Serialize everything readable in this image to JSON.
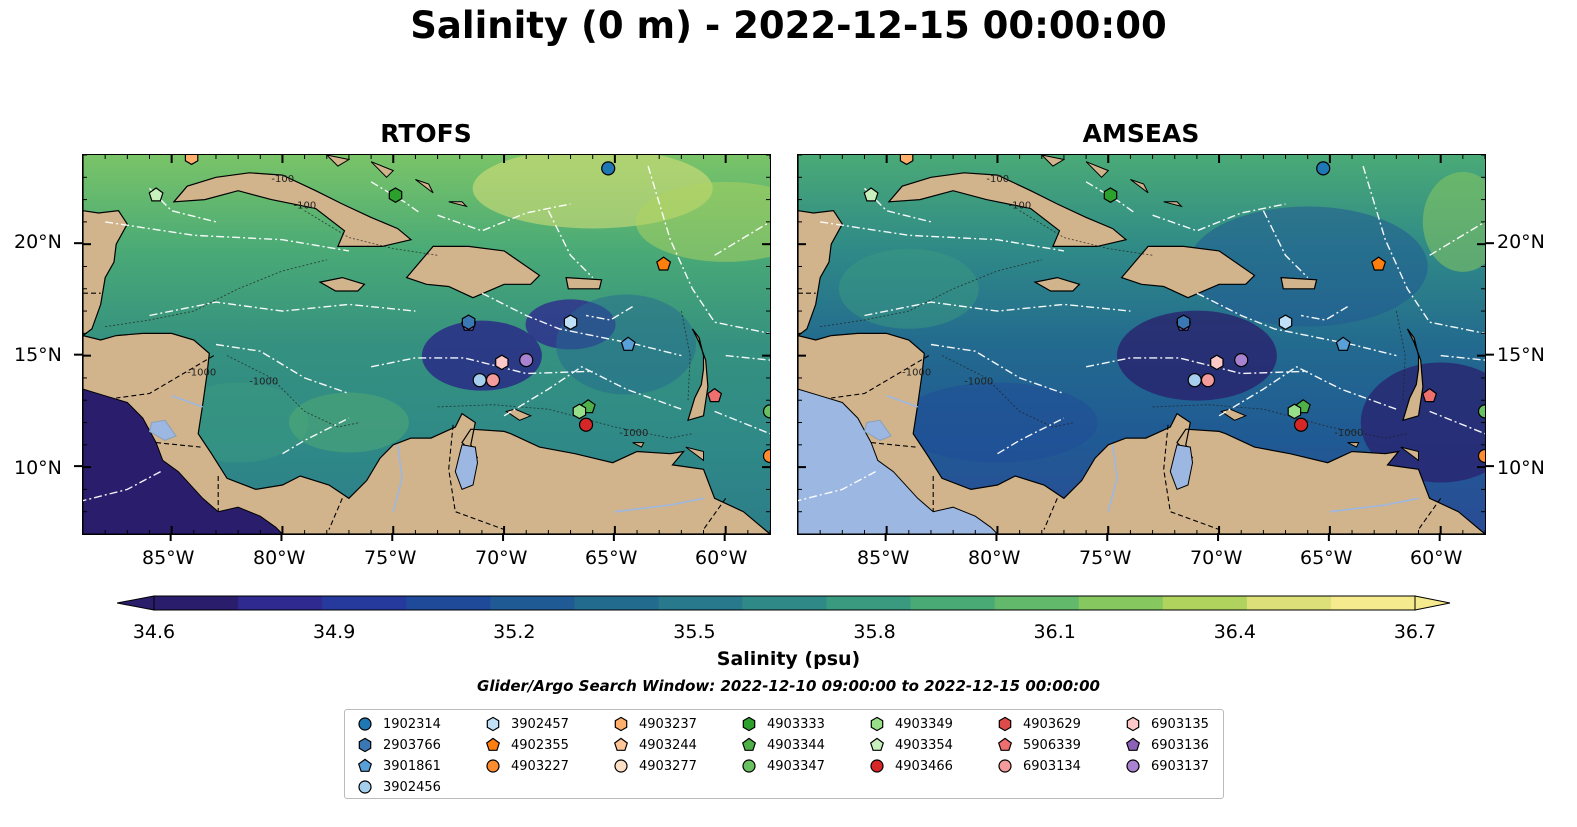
{
  "title": "Salinity (0 m) - 2022-12-15 00:00:00",
  "panels": [
    {
      "title": "RTOFS"
    },
    {
      "title": "AMSEAS"
    }
  ],
  "map_extent": {
    "lon": [
      -89,
      -58
    ],
    "lat": [
      7,
      24
    ]
  },
  "axes": {
    "lon_ticks": [
      "85°W",
      "80°W",
      "75°W",
      "70°W",
      "65°W",
      "60°W"
    ],
    "lat_ticks": [
      "20°N",
      "15°N",
      "10°N"
    ]
  },
  "contour_labels": [
    "-1000",
    "-100"
  ],
  "colorbar": {
    "label": "Salinity (psu)",
    "ticks": [
      "34.6",
      "34.9",
      "35.2",
      "35.5",
      "35.8",
      "36.1",
      "36.4",
      "36.7"
    ],
    "range": [
      34.6,
      36.7
    ],
    "colormap": "haline",
    "colors": [
      "#2a1d6b",
      "#2e2a8f",
      "#263a9e",
      "#1f4a9a",
      "#205a94",
      "#236a8f",
      "#28798b",
      "#2f8a87",
      "#3a9a80",
      "#4aaa76",
      "#62b96b",
      "#86c760",
      "#b0d35e",
      "#dde079",
      "#f5ea8e"
    ]
  },
  "search_window": "Glider/Argo Search Window: 2022-12-10 09:00:00 to 2022-12-15 00:00:00",
  "legend": [
    {
      "id": "1902314",
      "shape": "circle",
      "color": "#1f77b4"
    },
    {
      "id": "2903766",
      "shape": "hexagon",
      "color": "#3a78b5"
    },
    {
      "id": "3901861",
      "shape": "pentagon",
      "color": "#5aa0d8"
    },
    {
      "id": "3902456",
      "shape": "circle",
      "color": "#a6cfee"
    },
    {
      "id": "3902457",
      "shape": "hexagon",
      "color": "#bfe0f7"
    },
    {
      "id": "4902355",
      "shape": "pentagon",
      "color": "#ff7f0e"
    },
    {
      "id": "4903227",
      "shape": "circle",
      "color": "#ff8c2e"
    },
    {
      "id": "4903237",
      "shape": "hexagon",
      "color": "#ffae6b"
    },
    {
      "id": "4903244",
      "shape": "pentagon",
      "color": "#ffc699"
    },
    {
      "id": "4903277",
      "shape": "circle",
      "color": "#ffe0c4"
    },
    {
      "id": "4903333",
      "shape": "hexagon",
      "color": "#2ca02c"
    },
    {
      "id": "4903344",
      "shape": "pentagon",
      "color": "#4fb04a"
    },
    {
      "id": "4903347",
      "shape": "circle",
      "color": "#68c261"
    },
    {
      "id": "4903349",
      "shape": "hexagon",
      "color": "#98df8a"
    },
    {
      "id": "4903354",
      "shape": "pentagon",
      "color": "#c7f0bc"
    },
    {
      "id": "4903466",
      "shape": "circle",
      "color": "#d62728"
    },
    {
      "id": "4903629",
      "shape": "hexagon",
      "color": "#df4a4a"
    },
    {
      "id": "5906339",
      "shape": "pentagon",
      "color": "#ef6f6f"
    },
    {
      "id": "6903134",
      "shape": "circle",
      "color": "#f49b9b"
    },
    {
      "id": "6903135",
      "shape": "hexagon",
      "color": "#fcc8c8"
    },
    {
      "id": "6903136",
      "shape": "pentagon",
      "color": "#8c62b9"
    },
    {
      "id": "6903137",
      "shape": "circle",
      "color": "#a982d1"
    }
  ],
  "markers": [
    {
      "id": "1902314",
      "lon": -65.3,
      "lat": 23.4
    },
    {
      "id": "4903237",
      "lon": -84.1,
      "lat": 23.9
    },
    {
      "id": "4903354",
      "lon": -85.7,
      "lat": 22.2
    },
    {
      "id": "4903333",
      "lon": -74.9,
      "lat": 22.2
    },
    {
      "id": "4902355",
      "lon": -62.8,
      "lat": 19.1
    },
    {
      "id": "6903136",
      "lon": -71.6,
      "lat": 16.4
    },
    {
      "id": "2903766",
      "lon": -71.6,
      "lat": 16.5
    },
    {
      "id": "3902457",
      "lon": -67.0,
      "lat": 16.5
    },
    {
      "id": "3901861",
      "lon": -64.4,
      "lat": 15.5
    },
    {
      "id": "6903137",
      "lon": -69.0,
      "lat": 14.8
    },
    {
      "id": "6903135",
      "lon": -70.1,
      "lat": 14.7
    },
    {
      "id": "6903134",
      "lon": -70.5,
      "lat": 13.9
    },
    {
      "id": "3902456",
      "lon": -71.1,
      "lat": 13.9
    },
    {
      "id": "4903344",
      "lon": -66.2,
      "lat": 12.7
    },
    {
      "id": "4903349",
      "lon": -66.6,
      "lat": 12.5
    },
    {
      "id": "4903466",
      "lon": -66.3,
      "lat": 11.9
    },
    {
      "id": "5906339",
      "lon": -60.5,
      "lat": 13.2
    },
    {
      "id": "4903347",
      "lon": -58.0,
      "lat": 12.5
    },
    {
      "id": "4903227",
      "lon": -58.0,
      "lat": 10.5
    }
  ]
}
